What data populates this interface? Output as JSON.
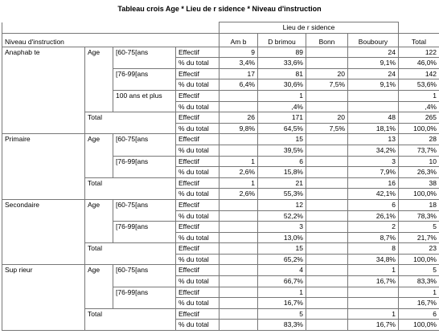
{
  "title": "Tableau crois  Age * Lieu de r sidence * Niveau d'instruction",
  "header": {
    "row_var": "Niveau d'instruction",
    "col_var": "Lieu de r sidence",
    "columns": [
      "Am b",
      "D brimou",
      "Bonn",
      "Bouboury"
    ],
    "total": "Total"
  },
  "levels": [
    {
      "label": "Anaphab te",
      "var": "Age",
      "groups": [
        {
          "label": "[60-75[ans",
          "rows": [
            {
              "stat": "Effectif",
              "cells": [
                9,
                89,
                null,
                24,
                122
              ]
            },
            {
              "stat": "% du total",
              "cells": [
                "3,4%",
                "33,6%",
                null,
                "9,1%",
                "46,0%"
              ]
            }
          ]
        },
        {
          "label": "[76-99[ans",
          "rows": [
            {
              "stat": "Effectif",
              "cells": [
                17,
                81,
                20,
                24,
                142
              ]
            },
            {
              "stat": "% du total",
              "cells": [
                "6,4%",
                "30,6%",
                "7,5%",
                "9,1%",
                "53,6%"
              ]
            }
          ]
        },
        {
          "label": "100 ans et plus",
          "rows": [
            {
              "stat": "Effectif",
              "cells": [
                null,
                1,
                null,
                null,
                1
              ]
            },
            {
              "stat": "% du total",
              "cells": [
                null,
                ",4%",
                null,
                null,
                ",4%"
              ]
            }
          ]
        }
      ],
      "total": {
        "label": "Total",
        "rows": [
          {
            "stat": "Effectif",
            "cells": [
              26,
              171,
              20,
              48,
              265
            ]
          },
          {
            "stat": "% du total",
            "cells": [
              "9,8%",
              "64,5%",
              "7,5%",
              "18,1%",
              "100,0%"
            ]
          }
        ]
      }
    },
    {
      "label": "Primaire",
      "var": "Age",
      "groups": [
        {
          "label": "[60-75[ans",
          "rows": [
            {
              "stat": "Effectif",
              "cells": [
                null,
                15,
                null,
                13,
                28
              ]
            },
            {
              "stat": "% du total",
              "cells": [
                null,
                "39,5%",
                null,
                "34,2%",
                "73,7%"
              ]
            }
          ]
        },
        {
          "label": "[76-99[ans",
          "rows": [
            {
              "stat": "Effectif",
              "cells": [
                1,
                6,
                null,
                3,
                10
              ]
            },
            {
              "stat": "% du total",
              "cells": [
                "2,6%",
                "15,8%",
                null,
                "7,9%",
                "26,3%"
              ]
            }
          ]
        }
      ],
      "total": {
        "label": "Total",
        "rows": [
          {
            "stat": "Effectif",
            "cells": [
              1,
              21,
              null,
              16,
              38
            ]
          },
          {
            "stat": "% du total",
            "cells": [
              "2,6%",
              "55,3%",
              null,
              "42,1%",
              "100,0%"
            ]
          }
        ]
      }
    },
    {
      "label": "Secondaire",
      "var": "Age",
      "groups": [
        {
          "label": "[60-75[ans",
          "rows": [
            {
              "stat": "Effectif",
              "cells": [
                null,
                12,
                null,
                6,
                18
              ]
            },
            {
              "stat": "% du total",
              "cells": [
                null,
                "52,2%",
                null,
                "26,1%",
                "78,3%"
              ]
            }
          ]
        },
        {
          "label": "[76-99[ans",
          "rows": [
            {
              "stat": "Effectif",
              "cells": [
                null,
                3,
                null,
                2,
                5
              ]
            },
            {
              "stat": "% du total",
              "cells": [
                null,
                "13,0%",
                null,
                "8,7%",
                "21,7%"
              ]
            }
          ]
        }
      ],
      "total": {
        "label": "Total",
        "rows": [
          {
            "stat": "Effectif",
            "cells": [
              null,
              15,
              null,
              8,
              23
            ]
          },
          {
            "stat": "% du total",
            "cells": [
              null,
              "65,2%",
              null,
              "34,8%",
              "100,0%"
            ]
          }
        ]
      }
    },
    {
      "label": "Sup rieur",
      "var": "Age",
      "groups": [
        {
          "label": "[60-75[ans",
          "rows": [
            {
              "stat": "Effectif",
              "cells": [
                null,
                4,
                null,
                1,
                5
              ]
            },
            {
              "stat": "% du total",
              "cells": [
                null,
                "66,7%",
                null,
                "16,7%",
                "83,3%"
              ]
            }
          ]
        },
        {
          "label": "[76-99[ans",
          "rows": [
            {
              "stat": "Effectif",
              "cells": [
                null,
                1,
                null,
                null,
                1
              ]
            },
            {
              "stat": "% du total",
              "cells": [
                null,
                "16,7%",
                null,
                null,
                "16,7%"
              ]
            }
          ]
        }
      ],
      "total": {
        "label": "Total",
        "rows": [
          {
            "stat": "Effectif",
            "cells": [
              null,
              5,
              null,
              1,
              6
            ]
          },
          {
            "stat": "% du total",
            "cells": [
              null,
              "83,3%",
              null,
              "16,7%",
              "100,0%"
            ]
          }
        ]
      }
    }
  ]
}
